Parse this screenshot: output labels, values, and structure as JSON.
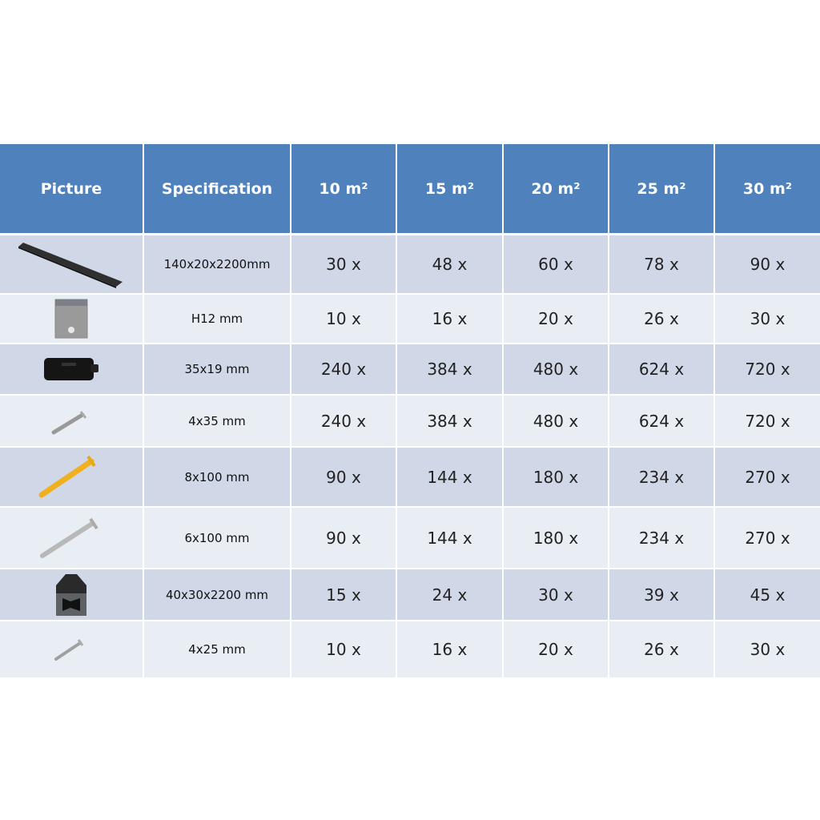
{
  "table": {
    "headers": [
      "Picture",
      "Specification",
      "10 m²",
      "15 m²",
      "20 m²",
      "25 m²",
      "30 m²"
    ],
    "header_color": "#4f81bd",
    "row_colors": [
      "#d0d8e8",
      "#e9edf4"
    ],
    "rows": [
      {
        "icon": "decking-board-icon",
        "spec": "140x20x2200mm",
        "qty": [
          "30 x",
          "48 x",
          "60 x",
          "78 x",
          "90 x"
        ]
      },
      {
        "icon": "clip-icon",
        "spec": "H12 mm",
        "qty": [
          "10 x",
          "16 x",
          "20 x",
          "26 x",
          "30 x"
        ]
      },
      {
        "icon": "black-clip-icon",
        "spec": "35x19 mm",
        "qty": [
          "240 x",
          "384 x",
          "480 x",
          "624 x",
          "720 x"
        ]
      },
      {
        "icon": "screw-small-icon",
        "spec": "4x35 mm",
        "qty": [
          "240 x",
          "384 x",
          "480 x",
          "624 x",
          "720 x"
        ]
      },
      {
        "icon": "wall-plug-icon",
        "spec": "8x100 mm",
        "qty": [
          "90 x",
          "144 x",
          "180 x",
          "234 x",
          "270 x"
        ]
      },
      {
        "icon": "screw-long-icon",
        "spec": "6x100 mm",
        "qty": [
          "90 x",
          "144 x",
          "180 x",
          "234 x",
          "270 x"
        ]
      },
      {
        "icon": "joist-icon",
        "spec": "40x30x2200 mm",
        "qty": [
          "15 x",
          "24 x",
          "30 x",
          "39 x",
          "45 x"
        ]
      },
      {
        "icon": "screw-tiny-icon",
        "spec": "4x25 mm",
        "qty": [
          "10 x",
          "16 x",
          "20 x",
          "26 x",
          "30 x"
        ]
      }
    ]
  }
}
